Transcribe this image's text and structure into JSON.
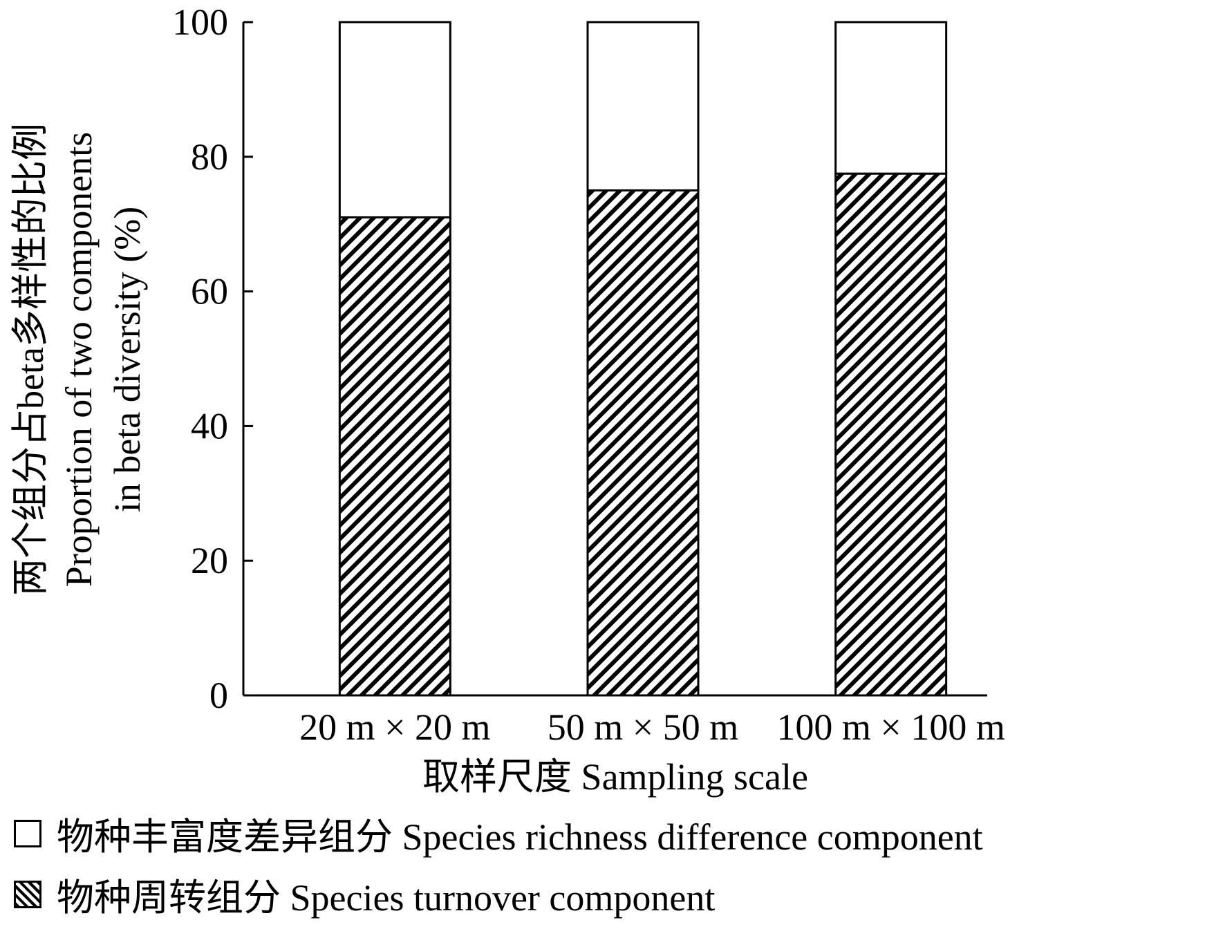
{
  "chart_data": {
    "type": "bar",
    "stacked": true,
    "categories": [
      "20 m × 20 m",
      "50 m × 50 m",
      "100 m × 100 m"
    ],
    "series": [
      {
        "name": "物种周转组分 Species turnover component",
        "values": [
          71,
          75,
          77.5
        ],
        "fill": "hatched"
      },
      {
        "name": "物种丰富度差异组分 Species richness difference component",
        "values": [
          29,
          25,
          22.5
        ],
        "fill": "#ffffff"
      }
    ],
    "ylim": [
      0,
      100
    ],
    "yticks": [
      "0",
      "20",
      "40",
      "60",
      "80",
      "100"
    ],
    "ylabel_lines": [
      "两个组分占beta多样性的比例",
      "Proportion of two components",
      "in beta diversity (%)"
    ],
    "xlabel": "取样尺度 Sampling scale",
    "legend_placement": "bottom-left",
    "grid": false
  },
  "legend": {
    "items": [
      {
        "label": "物种丰富度差异组分 Species richness difference component"
      },
      {
        "label": "物种周转组分 Species turnover component"
      }
    ]
  }
}
